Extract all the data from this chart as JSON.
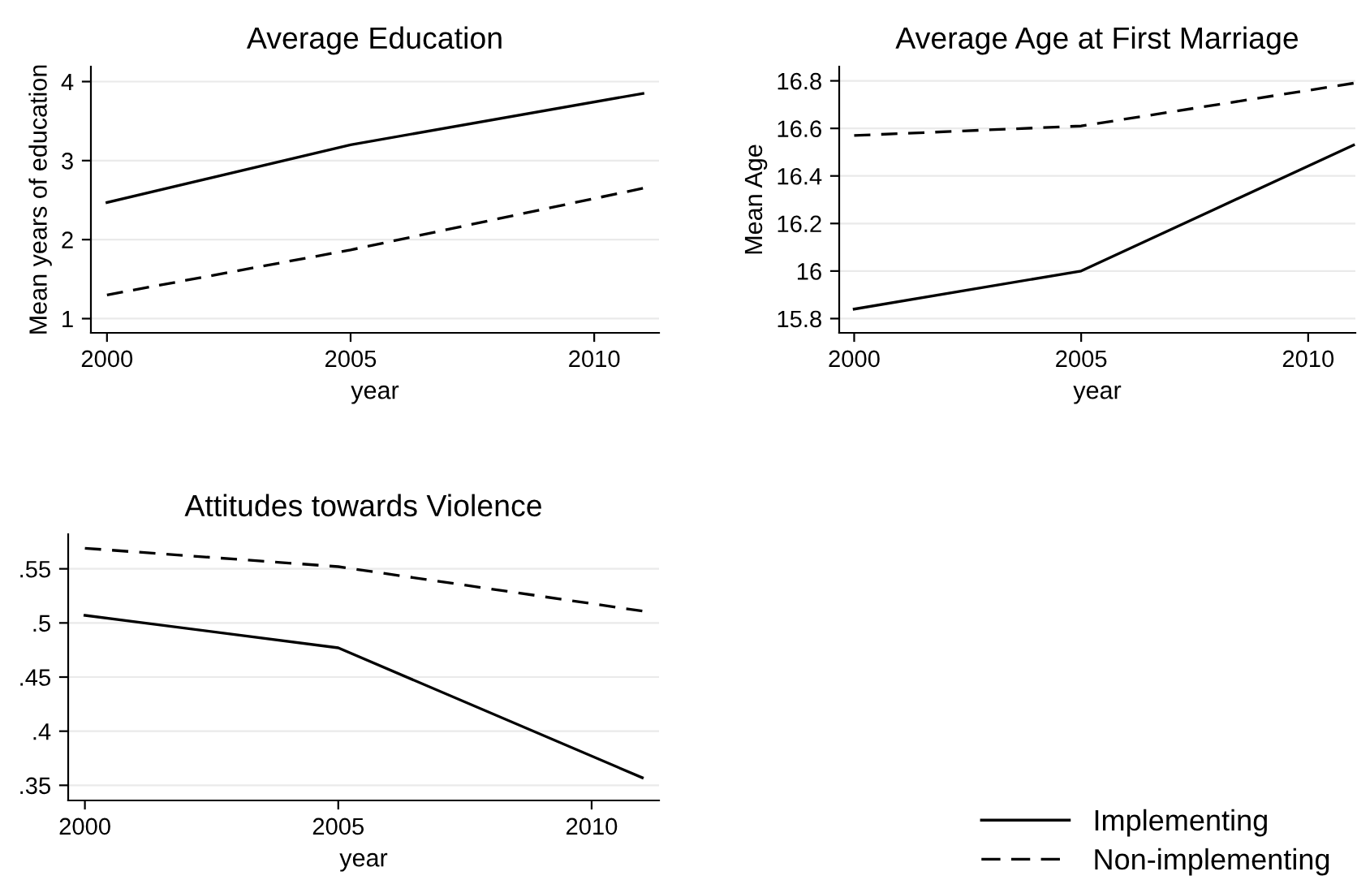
{
  "chart_data": [
    {
      "type": "line",
      "title": "Average Education",
      "xlabel": "year",
      "ylabel": "Mean years of education",
      "x": [
        2000,
        2005,
        2011
      ],
      "xlim": [
        1999.67,
        2011.33
      ],
      "xticks": [
        2000,
        2005,
        2010
      ],
      "ylim": [
        0.82,
        4.19
      ],
      "yticks": [
        1,
        2,
        3,
        4
      ],
      "grid": "y",
      "series": [
        {
          "color": "#000000",
          "line_style": "solid",
          "values": [
            2.47,
            3.2,
            3.85
          ]
        },
        {
          "color": "#000000",
          "line_style": "dashed",
          "values": [
            1.3,
            1.87,
            2.65
          ]
        }
      ]
    },
    {
      "type": "line",
      "title": "Average Age at First Marriage",
      "xlabel": "year",
      "ylabel": "Mean Age",
      "x": [
        2000,
        2005,
        2011
      ],
      "xlim": [
        1999.67,
        2011.04
      ],
      "xticks": [
        2000,
        2005,
        2010
      ],
      "ylim": [
        15.74,
        16.86
      ],
      "yticks": [
        {
          "value": 15.8,
          "label": "15.8"
        },
        {
          "value": 16,
          "label": "16"
        },
        {
          "value": 16.2,
          "label": "16.2"
        },
        {
          "value": 16.4,
          "label": "16.4"
        },
        {
          "value": 16.6,
          "label": "16.6"
        },
        {
          "value": 16.8,
          "label": "16.8"
        }
      ],
      "grid": "y",
      "series": [
        {
          "color": "#000000",
          "line_style": "solid",
          "values": [
            15.84,
            16.0,
            16.53
          ]
        },
        {
          "color": "#000000",
          "line_style": "dashed",
          "values": [
            16.57,
            16.61,
            16.79
          ]
        }
      ]
    },
    {
      "type": "line",
      "title": "Attitudes towards Violence",
      "xlabel": "year",
      "x": [
        2000,
        2005,
        2011
      ],
      "xlim": [
        1999.67,
        2011.33
      ],
      "xticks": [
        2000,
        2005,
        2010
      ],
      "ylim": [
        0.336,
        0.582
      ],
      "yticks": [
        {
          "value": 0.35,
          "label": ".35"
        },
        {
          "value": 0.4,
          "label": ".4"
        },
        {
          "value": 0.45,
          "label": ".45"
        },
        {
          "value": 0.5,
          "label": ".5"
        },
        {
          "value": 0.55,
          "label": ".55"
        }
      ],
      "grid": "y",
      "legend": "bottom right",
      "series": [
        {
          "name": "Implementing",
          "color": "#000000",
          "line_style": "solid",
          "values": [
            0.507,
            0.477,
            0.357
          ]
        },
        {
          "name": "Non-implementing",
          "color": "#000000",
          "line_style": "dashed",
          "values": [
            0.569,
            0.552,
            0.511
          ]
        }
      ]
    }
  ]
}
